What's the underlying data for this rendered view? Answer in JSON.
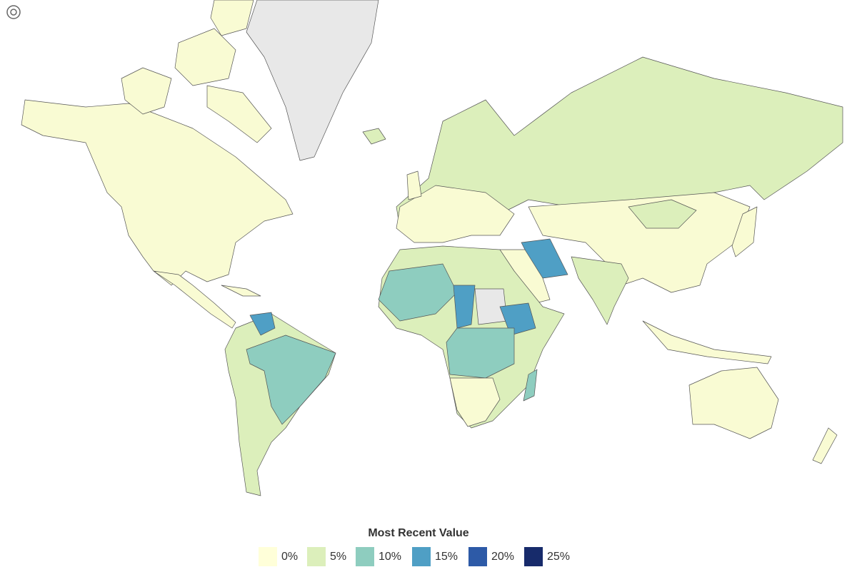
{
  "legend": {
    "title": "Most Recent Value",
    "items": [
      {
        "label": "0%",
        "color": "#ffffd9"
      },
      {
        "label": "5%",
        "color": "#dcefbb"
      },
      {
        "label": "10%",
        "color": "#8ecdbf"
      },
      {
        "label": "15%",
        "color": "#4f9fc5"
      },
      {
        "label": "20%",
        "color": "#2d5aa7"
      },
      {
        "label": "25%",
        "color": "#172b6b"
      }
    ]
  }
}
